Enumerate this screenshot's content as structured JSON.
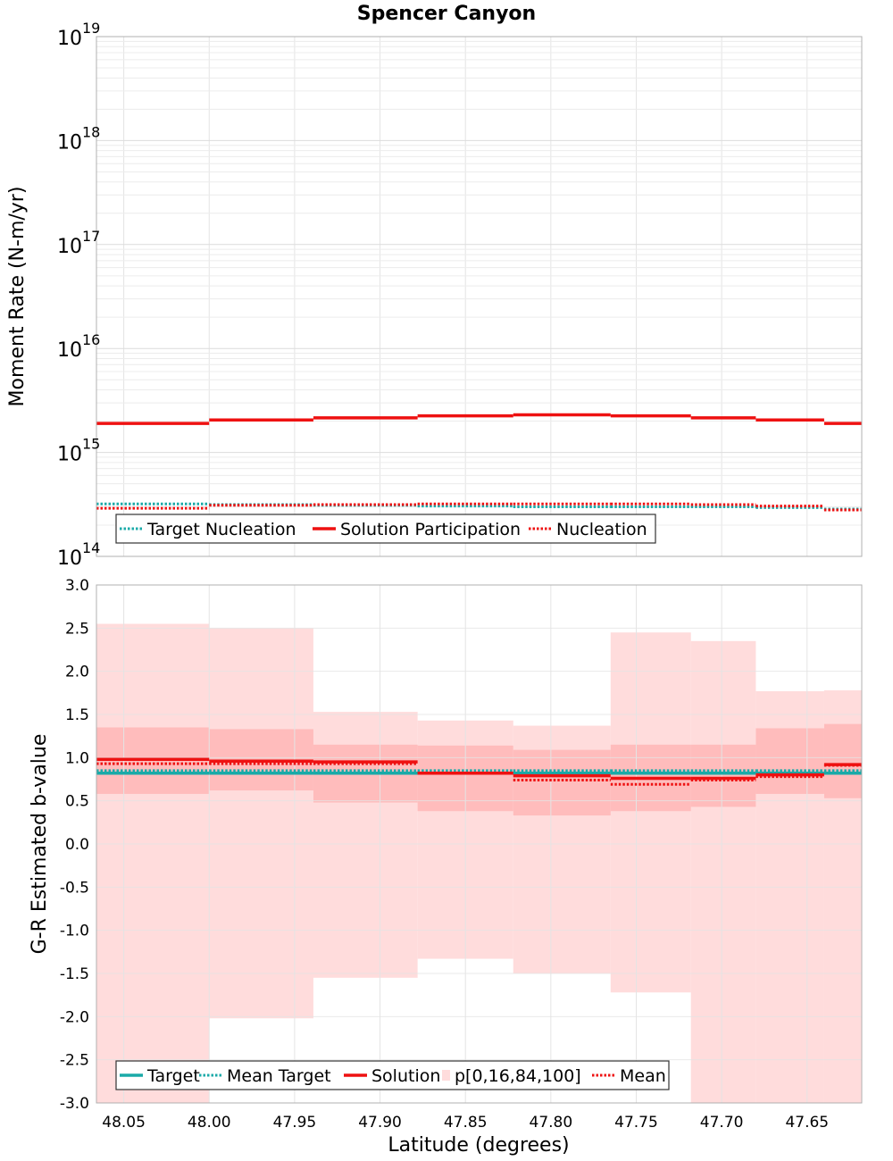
{
  "title": "Spencer Canyon",
  "colors": {
    "target": "#1aaaa8",
    "solution": "#ee1111",
    "band_outer": "#ffdcdc",
    "band_inner": "#ffbcbc",
    "grid": "#e4e4e4",
    "axis": "#b0b0b0"
  },
  "x_axis": {
    "label": "Latitude (degrees)",
    "ticks": [
      "48.05",
      "48.00",
      "47.95",
      "47.90",
      "47.85",
      "47.80",
      "47.75",
      "47.70",
      "47.65"
    ]
  },
  "chart_data": [
    {
      "type": "line",
      "title": "Spencer Canyon",
      "xlabel": "Latitude (degrees)",
      "ylabel": "Moment Rate (N-m/yr)",
      "yscale": "log",
      "ylim": [
        100000000000000.0,
        1e+19
      ],
      "xlim": [
        48.066,
        47.618
      ],
      "y_tick_exponents": [
        "14",
        "15",
        "16",
        "17",
        "18",
        "19"
      ],
      "bin_edges": [
        48.066,
        48.0,
        47.939,
        47.878,
        47.822,
        47.765,
        47.718,
        47.68,
        47.64,
        47.618
      ],
      "series": [
        {
          "name": "Target Nucleation",
          "style": "dotted",
          "color": "#1aaaa8",
          "values": [
            320000000000000.0,
            315000000000000.0,
            310000000000000.0,
            305000000000000.0,
            300000000000000.0,
            300000000000000.0,
            300000000000000.0,
            295000000000000.0,
            285000000000000.0
          ]
        },
        {
          "name": "Solution Participation",
          "style": "solid",
          "color": "#ee1111",
          "values": [
            1900000000000000.0,
            2050000000000000.0,
            2150000000000000.0,
            2250000000000000.0,
            2300000000000000.0,
            2250000000000000.0,
            2150000000000000.0,
            2050000000000000.0,
            1900000000000000.0
          ]
        },
        {
          "name": "Nucleation",
          "style": "dotted",
          "color": "#ee1111",
          "values": [
            290000000000000.0,
            310000000000000.0,
            315000000000000.0,
            320000000000000.0,
            320000000000000.0,
            320000000000000.0,
            315000000000000.0,
            305000000000000.0,
            280000000000000.0
          ]
        }
      ],
      "legend": {
        "position": "bottom-left",
        "entries": [
          "Target Nucleation",
          "Solution Participation",
          "Nucleation"
        ]
      },
      "grid": true
    },
    {
      "type": "line",
      "xlabel": "Latitude (degrees)",
      "ylabel": "G-R Estimated b-value",
      "ylim": [
        -3.0,
        3.0
      ],
      "xlim": [
        48.066,
        47.618
      ],
      "y_ticks": [
        "3.0",
        "2.5",
        "2.0",
        "1.5",
        "1.0",
        "0.5",
        "0.0",
        "-0.5",
        "-1.0",
        "-1.5",
        "-2.0",
        "-2.5",
        "-3.0"
      ],
      "bin_edges": [
        48.066,
        48.0,
        47.939,
        47.878,
        47.822,
        47.765,
        47.718,
        47.68,
        47.64,
        47.618
      ],
      "band_outer": {
        "name": "p[0,16,84,100]",
        "low": [
          -3.0,
          -2.02,
          -1.55,
          -1.33,
          -1.5,
          -1.72,
          -3.0,
          -3.0,
          -3.0
        ],
        "high": [
          2.55,
          2.5,
          1.53,
          1.43,
          1.37,
          2.45,
          2.35,
          1.77,
          1.78
        ]
      },
      "band_inner": {
        "low": [
          0.58,
          0.62,
          0.48,
          0.38,
          0.33,
          0.38,
          0.43,
          0.58,
          0.53
        ],
        "high": [
          1.35,
          1.33,
          1.15,
          1.14,
          1.09,
          1.15,
          1.15,
          1.34,
          1.39
        ]
      },
      "series": [
        {
          "name": "Target",
          "style": "solid",
          "color": "#1aaaa8",
          "values": [
            0.82,
            0.82,
            0.82,
            0.82,
            0.82,
            0.82,
            0.82,
            0.82,
            0.82
          ]
        },
        {
          "name": "Mean Target",
          "style": "dotted",
          "color": "#1aaaa8",
          "values": [
            0.85,
            0.85,
            0.85,
            0.85,
            0.85,
            0.85,
            0.85,
            0.85,
            0.85
          ]
        },
        {
          "name": "Solution",
          "style": "solid",
          "color": "#ee1111",
          "values": [
            0.98,
            0.96,
            0.95,
            0.82,
            0.79,
            0.76,
            0.76,
            0.8,
            0.92
          ]
        },
        {
          "name": "Mean",
          "style": "dotted",
          "color": "#ee1111",
          "values": [
            0.93,
            0.93,
            0.93,
            0.82,
            0.74,
            0.69,
            0.74,
            0.78,
            0.91
          ]
        }
      ],
      "legend": {
        "position": "bottom-left",
        "entries": [
          "Target",
          "Mean Target",
          "Solution",
          "p[0,16,84,100]",
          "Mean"
        ]
      },
      "grid": true
    }
  ]
}
